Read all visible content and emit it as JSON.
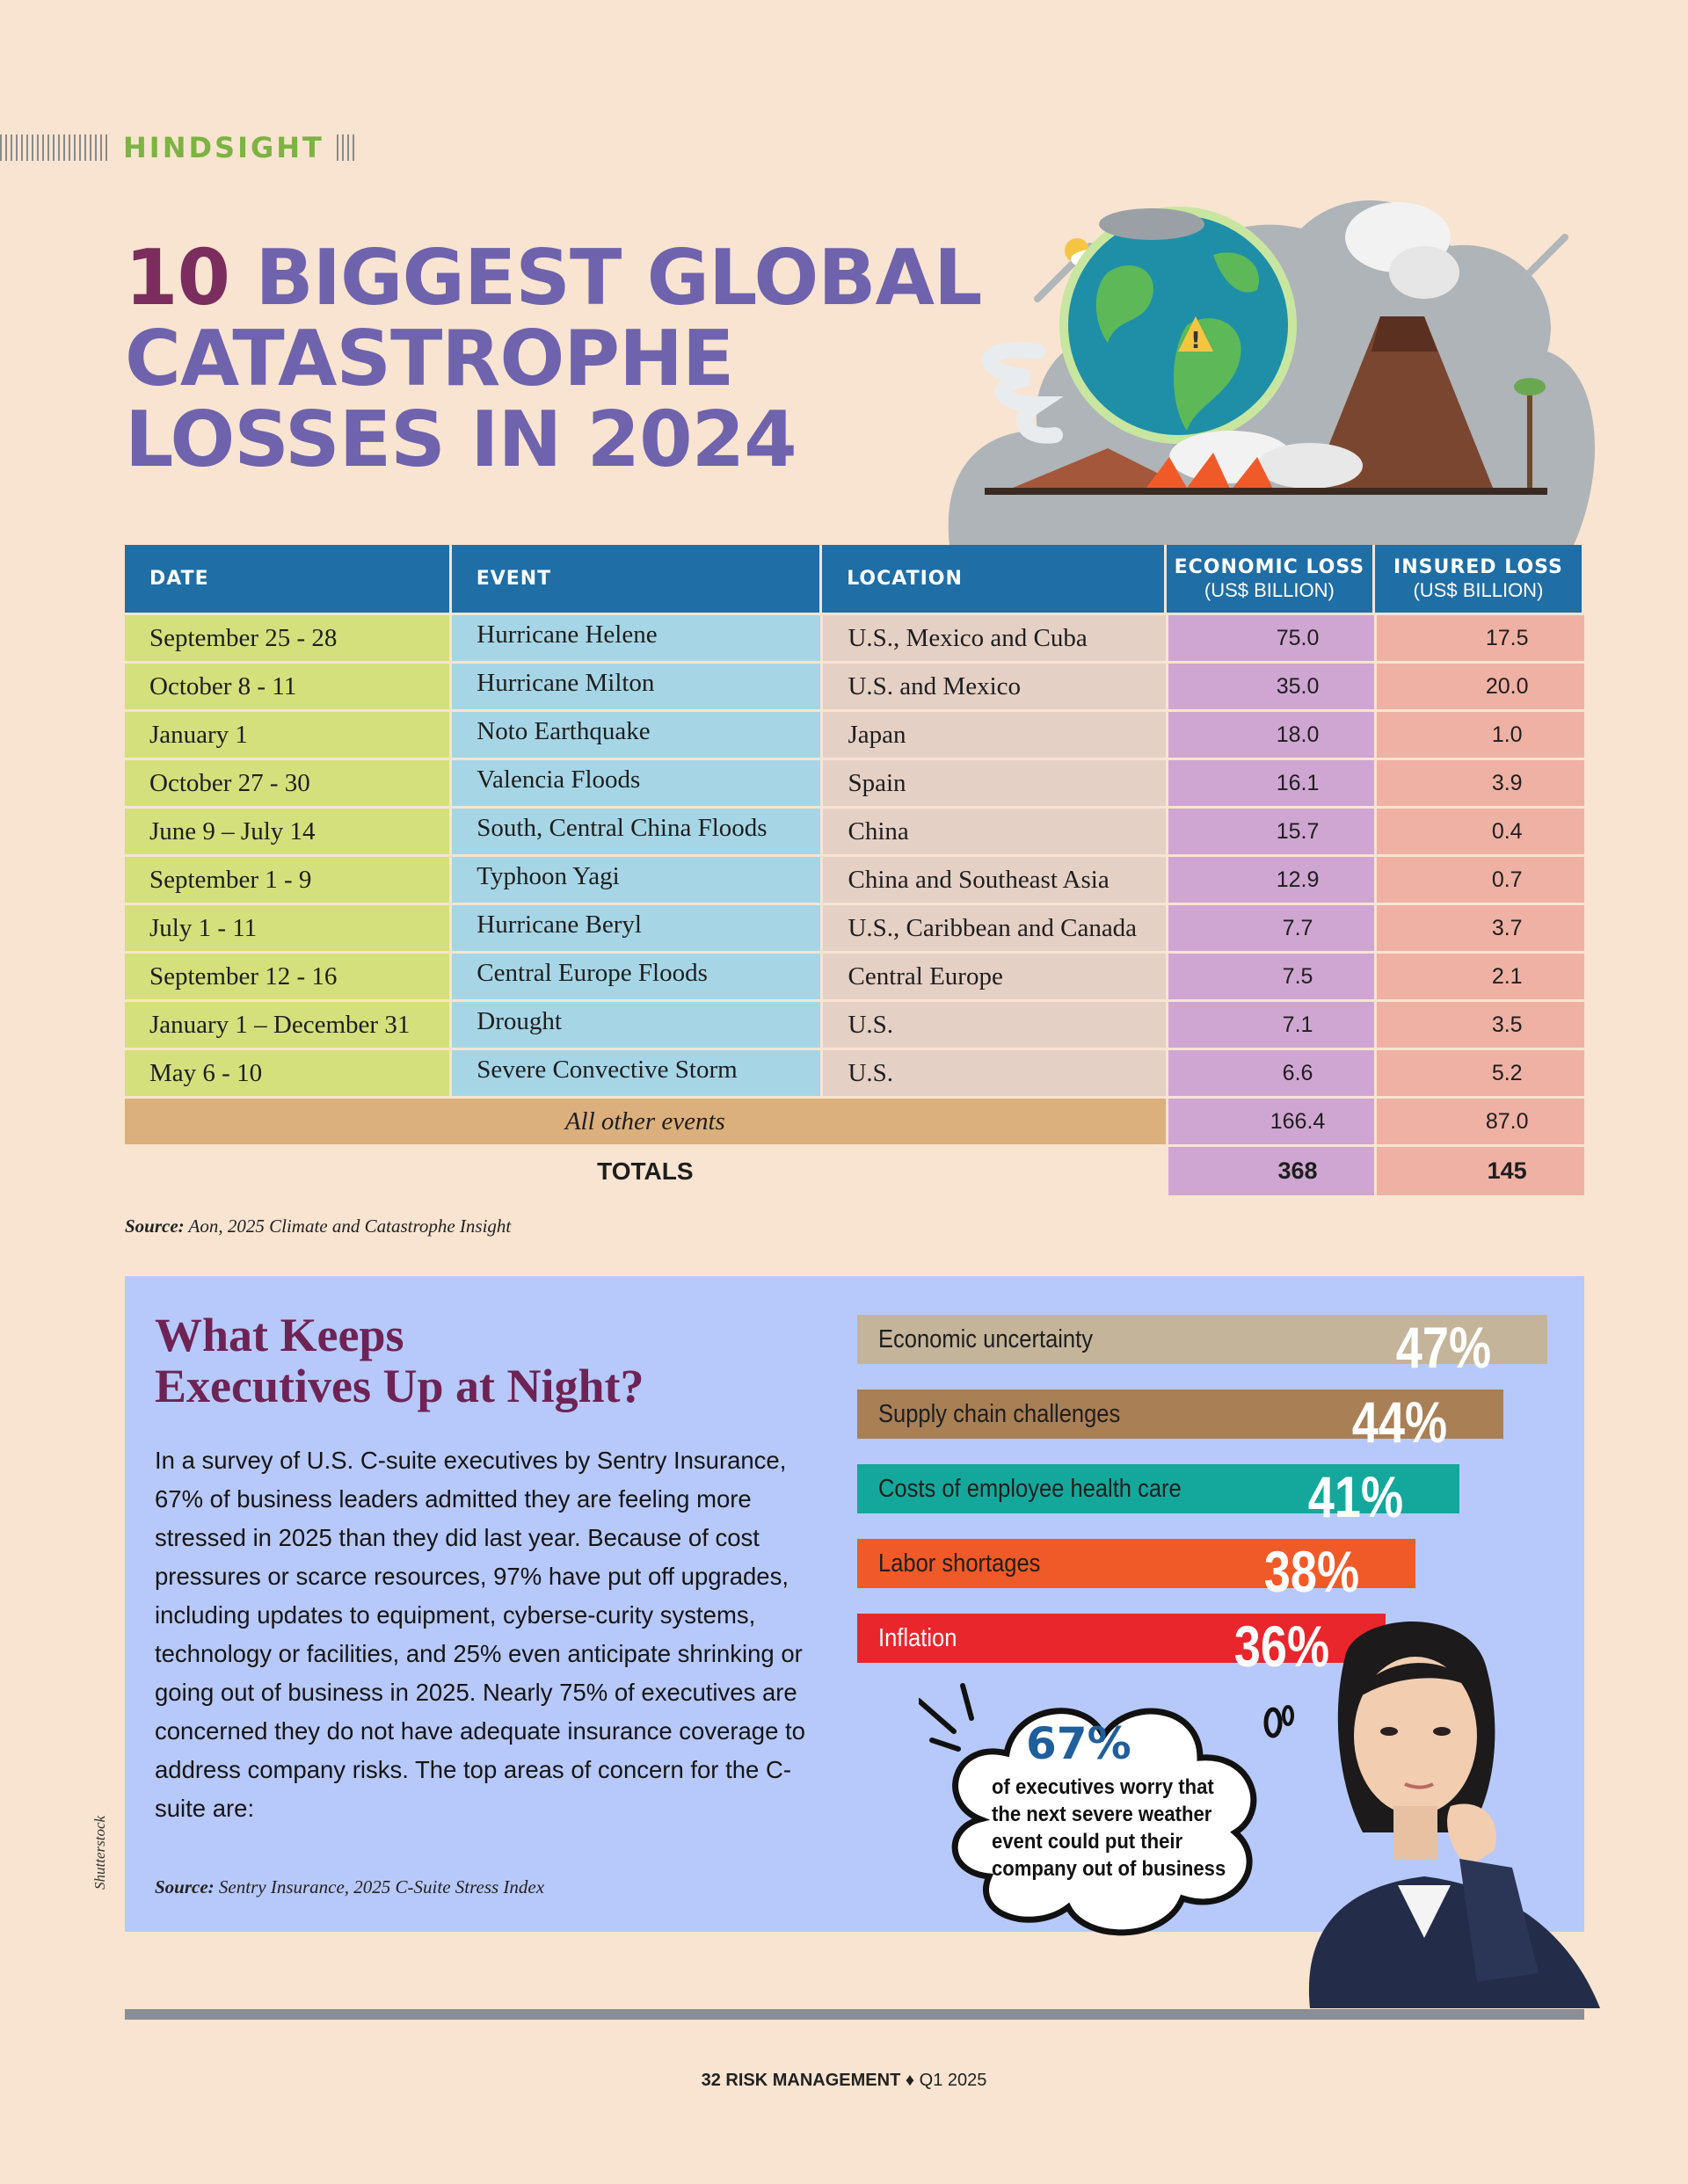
{
  "section": {
    "label": "HINDSIGHT"
  },
  "title": {
    "number": "10",
    "line1": "BIGGEST GLOBAL",
    "line2": "CATASTROPHE",
    "line3": "LOSSES IN 2024"
  },
  "table": {
    "headers": {
      "date": "DATE",
      "event": "EVENT",
      "location": "LOCATION",
      "economic": "ECONOMIC LOSS",
      "economic_unit": "(US$ BILLION)",
      "insured": "INSURED LOSS",
      "insured_unit": "(US$ BILLION)"
    },
    "rows": [
      {
        "date": "September 25 - 28",
        "event": "Hurricane Helene",
        "location": "U.S., Mexico and Cuba",
        "economic": "75.0",
        "insured": "17.5"
      },
      {
        "date": "October 8 - 11",
        "event": "Hurricane Milton",
        "location": "U.S. and Mexico",
        "economic": "35.0",
        "insured": "20.0"
      },
      {
        "date": "January 1",
        "event": "Noto Earthquake",
        "location": "Japan",
        "economic": "18.0",
        "insured": "1.0"
      },
      {
        "date": "October 27 - 30",
        "event": "Valencia Floods",
        "location": "Spain",
        "economic": "16.1",
        "insured": "3.9"
      },
      {
        "date": "June 9 – July 14",
        "event": "South, Central China Floods",
        "location": "China",
        "economic": "15.7",
        "insured": "0.4"
      },
      {
        "date": "September 1 - 9",
        "event": "Typhoon Yagi",
        "location": "China and Southeast Asia",
        "economic": "12.9",
        "insured": "0.7"
      },
      {
        "date": "July 1 - 11",
        "event": "Hurricane Beryl",
        "location": "U.S., Caribbean and Canada",
        "economic": "7.7",
        "insured": "3.7"
      },
      {
        "date": "September 12 - 16",
        "event": "Central Europe Floods",
        "location": "Central Europe",
        "economic": "7.5",
        "insured": "2.1"
      },
      {
        "date": "January 1 – December 31",
        "event": "Drought",
        "location": "U.S.",
        "economic": "7.1",
        "insured": "3.5"
      },
      {
        "date": "May 6 - 10",
        "event": "Severe Convective Storm",
        "location": "U.S.",
        "economic": "6.6",
        "insured": "5.2"
      }
    ],
    "other": {
      "label": "All other events",
      "economic": "166.4",
      "insured": "87.0"
    },
    "totals": {
      "label": "TOTALS",
      "economic": "368",
      "insured": "145"
    }
  },
  "source1": {
    "label": "Source:",
    "text": "Aon, 2025 Climate and Catastrophe Insight"
  },
  "survey": {
    "title_line1": "What Keeps",
    "title_line2": "Executives Up at Night?",
    "body": "In a survey of U.S. C-suite executives by Sentry Insurance, 67% of business leaders admitted they are feeling more stressed in 2025 than they did last year. Because of cost pressures or scarce resources, 97% have put off upgrades, including updates to equipment, cyberse-curity systems, technology or facilities, and 25% even anticipate shrinking or going out of business in 2025. Nearly 75% of executives are concerned they do not have adequate insurance coverage to address company risks. The top areas of concern for the C-suite are:",
    "source_label": "Source:",
    "source_text": "Sentry Insurance, 2025 C-Suite Stress Index",
    "credit": "Shutterstock",
    "concerns": [
      {
        "label": "Economic uncertainty",
        "value": 47,
        "display": "47%",
        "color": "#c4b49a",
        "text_color": "#1e1e1e"
      },
      {
        "label": "Supply chain challenges",
        "value": 44,
        "display": "44%",
        "color": "#a97f55",
        "text_color": "#1e1e1e"
      },
      {
        "label": "Costs of employee health care",
        "value": 41,
        "display": "41%",
        "color": "#14a89c",
        "text_color": "#1e1e1e"
      },
      {
        "label": "Labor shortages",
        "value": 38,
        "display": "38%",
        "color": "#f05a28",
        "text_color": "#1e1e1e"
      },
      {
        "label": "Inflation",
        "value": 36,
        "display": "36%",
        "color": "#e8262c",
        "text_color": "#ffffff"
      }
    ],
    "callout": {
      "stat": "67%",
      "text": "of executives worry that the next severe weather event could put their company out of business"
    }
  },
  "footer": {
    "page": "32",
    "publication": "RISK MANAGEMENT",
    "issue": "Q1 2025"
  }
}
